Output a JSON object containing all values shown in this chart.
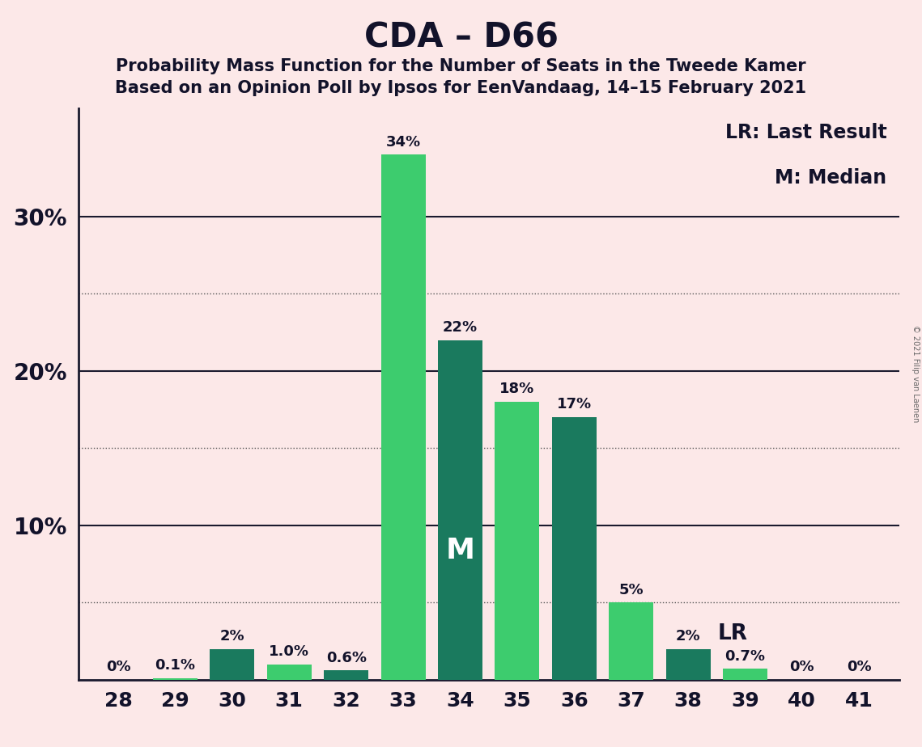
{
  "title": "CDA – D66",
  "subtitle1": "Probability Mass Function for the Number of Seats in the Tweede Kamer",
  "subtitle2": "Based on an Opinion Poll by Ipsos for EenVandaag, 14–15 February 2021",
  "copyright": "© 2021 Filip van Laenen",
  "seats": [
    28,
    29,
    30,
    31,
    32,
    33,
    34,
    35,
    36,
    37,
    38,
    39,
    40,
    41
  ],
  "values": [
    0.0,
    0.1,
    2.0,
    1.0,
    0.6,
    34.0,
    22.0,
    18.0,
    17.0,
    5.0,
    2.0,
    0.7,
    0.0,
    0.0
  ],
  "labels": [
    "0%",
    "0.1%",
    "2%",
    "1.0%",
    "0.6%",
    "34%",
    "22%",
    "18%",
    "17%",
    "5%",
    "2%",
    "0.7%",
    "0%",
    "0%"
  ],
  "color_map": {
    "28": "#3dcc6e",
    "29": "#3dcc6e",
    "30": "#1a7a5e",
    "31": "#3dcc6e",
    "32": "#1a7a5e",
    "33": "#3dcc6e",
    "34": "#1a7a5e",
    "35": "#3dcc6e",
    "36": "#1a7a5e",
    "37": "#3dcc6e",
    "38": "#1a7a5e",
    "39": "#3dcc6e",
    "40": "#1a7a5e",
    "41": "#3dcc6e"
  },
  "median_seat": 34,
  "lr_seat": 38,
  "background_color": "#fce8e8",
  "legend_lr": "LR: Last Result",
  "legend_m": "M: Median",
  "solid_lines": [
    10,
    20,
    30
  ],
  "dotted_lines": [
    5,
    15,
    25
  ],
  "ytick_positions": [
    10,
    20,
    30
  ],
  "ytick_labels": [
    "10%",
    "20%",
    "30%"
  ],
  "ylim_max": 37,
  "xlim_min": 27.3,
  "xlim_max": 41.7
}
